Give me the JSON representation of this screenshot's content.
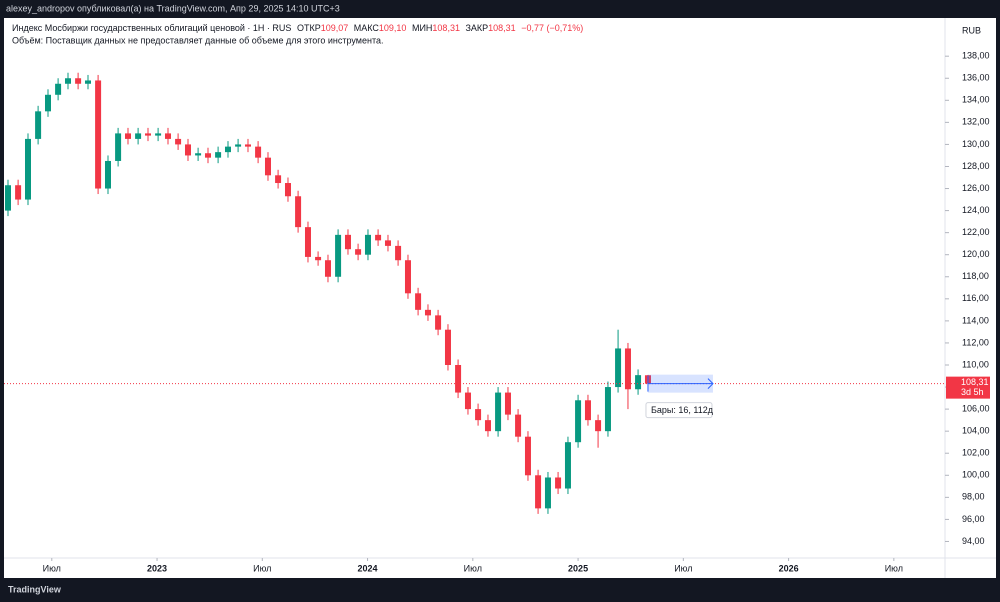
{
  "header": {
    "publisher": "alexey_andropov опубликовал(а) на TradingView.com, Апр 29, 2025 14:10 UTC+3",
    "brand": "TradingView"
  },
  "chart_data": {
    "type": "candlestick",
    "title": "Индекс Мосбиржи государственных облигаций ценовой · 1Н · RUS",
    "legend": {
      "open_label": "ОТКР",
      "open": "109,07",
      "high_label": "МАКС",
      "high": "109,10",
      "low_label": "МИН",
      "low": "108,31",
      "close_label": "ЗАКР",
      "close": "108,31",
      "change": "−0,77 (−0,71%)"
    },
    "subtitle": "Объём: Поставщик данных не предоставляет данные об объеме для этого инструмента.",
    "currency": "RUB",
    "last_price_label": "108,31",
    "countdown": "3d 5h",
    "measure_label": "Бары: 16, 112д",
    "up_color": "#089981",
    "down_color": "#f23645",
    "x": [
      2022.292,
      2022.34,
      2022.387,
      2022.435,
      2022.482,
      2022.53,
      2022.577,
      2022.625,
      2022.672,
      2022.72,
      2022.767,
      2022.815,
      2022.862,
      2022.91,
      2022.957,
      2023.005,
      2023.052,
      2023.1,
      2023.147,
      2023.195,
      2023.242,
      2023.29,
      2023.337,
      2023.385,
      2023.432,
      2023.48,
      2023.527,
      2023.575,
      2023.622,
      2023.67,
      2023.717,
      2023.765,
      2023.812,
      2023.86,
      2023.907,
      2023.955,
      2024.002,
      2024.05,
      2024.097,
      2024.145,
      2024.192,
      2024.24,
      2024.287,
      2024.335,
      2024.382,
      2024.43,
      2024.477,
      2024.525,
      2024.572,
      2024.62,
      2024.667,
      2024.715,
      2024.762,
      2024.81,
      2024.857,
      2024.905,
      2024.952,
      2025.0,
      2025.047,
      2025.095,
      2025.142,
      2025.19,
      2025.237,
      2025.285,
      2025.332
    ],
    "open": [
      124,
      126.3,
      125,
      130.5,
      133,
      134.5,
      135.5,
      136,
      135.5,
      135.8,
      126,
      128.5,
      131,
      130.5,
      131,
      130.8,
      131,
      130.5,
      130,
      129,
      129.2,
      128.8,
      129.3,
      129.8,
      130,
      129.8,
      128.8,
      127.2,
      126.5,
      125.3,
      122.5,
      119.8,
      119.5,
      118,
      121.8,
      120.5,
      120,
      121.8,
      121.3,
      120.8,
      119.5,
      116.5,
      115,
      114.5,
      113.2,
      110,
      107.5,
      106,
      105,
      104,
      107.5,
      105.5,
      103.5,
      100,
      97,
      99.8,
      98.8,
      103,
      106.8,
      105,
      104,
      108,
      111.5,
      107.8,
      109.07
    ],
    "high": [
      126.8,
      126.8,
      131,
      133.5,
      135,
      136,
      136.5,
      136.5,
      136.3,
      136.3,
      129,
      131.5,
      131.5,
      131.5,
      131.5,
      131.5,
      131.5,
      131,
      130.5,
      129.7,
      129.7,
      129.8,
      130.3,
      130.5,
      130.5,
      130.3,
      129.3,
      127.7,
      127,
      125.8,
      123,
      120.3,
      120,
      122.3,
      122.3,
      121,
      122.3,
      122.3,
      121.8,
      121.3,
      120,
      117,
      115.5,
      115,
      113.7,
      110.5,
      108,
      106.5,
      105.5,
      108,
      108,
      106,
      104,
      100.5,
      100.3,
      100.3,
      103.5,
      107.3,
      107.3,
      105.5,
      108.5,
      113.2,
      112,
      109.6,
      109.1
    ],
    "low": [
      123.5,
      124.5,
      124.5,
      130,
      132.5,
      134,
      135,
      135,
      135,
      125.5,
      125.5,
      128,
      130,
      130,
      130.3,
      130.3,
      130,
      129.5,
      128.5,
      128.5,
      128.3,
      128.3,
      128.8,
      129.3,
      129.3,
      128.3,
      126.7,
      126,
      124.8,
      122,
      119.3,
      119,
      117.5,
      117.5,
      120,
      119.5,
      119.5,
      120.8,
      120.3,
      119,
      116,
      114.5,
      114,
      112.7,
      109.5,
      107,
      105.5,
      104.5,
      103.5,
      103.5,
      105,
      103,
      99.5,
      96.5,
      96.5,
      98.3,
      98.3,
      102.5,
      104.5,
      102.5,
      103.5,
      107.5,
      106,
      107.3,
      108.31
    ],
    "close": [
      126.3,
      125,
      130.5,
      133,
      134.5,
      135.5,
      136,
      135.5,
      135.8,
      126,
      128.5,
      131,
      130.5,
      131,
      130.8,
      131,
      130.5,
      130,
      129,
      129.2,
      128.8,
      129.3,
      129.8,
      130,
      129.8,
      128.8,
      127.2,
      126.5,
      125.3,
      122.5,
      119.8,
      119.5,
      118,
      121.8,
      120.5,
      120,
      121.8,
      121.3,
      120.8,
      119.5,
      116.5,
      115,
      114.5,
      113.2,
      110,
      107.5,
      106,
      105,
      104,
      107.5,
      105.5,
      103.5,
      100,
      97,
      99.8,
      98.8,
      103,
      106.8,
      105,
      104,
      108,
      111.5,
      107.8,
      109.08,
      108.31
    ],
    "xlim": [
      2022.254,
      2026.743
    ],
    "xticks": [
      {
        "value": 2022.5,
        "label": "Июл"
      },
      2023,
      {
        "value": 2023.5,
        "label": "Июл"
      },
      2024,
      {
        "value": 2024.5,
        "label": "Июл"
      },
      2025,
      {
        "value": 2025.5,
        "label": "Июл"
      },
      2026,
      {
        "value": 2026.5,
        "label": "Июл"
      }
    ],
    "ylim": [
      92.5,
      141.1
    ],
    "yticks": [
      {
        "value": 94,
        "label": "94,00"
      },
      {
        "value": 96,
        "label": "96,00"
      },
      {
        "value": 98,
        "label": "98,00"
      },
      {
        "value": 100,
        "label": "100,00"
      },
      {
        "value": 102,
        "label": "102,00"
      },
      {
        "value": 104,
        "label": "104,00"
      },
      {
        "value": 106,
        "label": "106,00"
      },
      {
        "value": 108,
        "label": "108,00"
      },
      {
        "value": 110,
        "label": "110,00"
      },
      {
        "value": 112,
        "label": "112,00"
      },
      {
        "value": 114,
        "label": "114,00"
      },
      {
        "value": 116,
        "label": "116,00"
      },
      {
        "value": 118,
        "label": "118,00"
      },
      {
        "value": 120,
        "label": "120,00"
      },
      {
        "value": 122,
        "label": "122,00"
      },
      {
        "value": 124,
        "label": "124,00"
      },
      {
        "value": 126,
        "label": "126,00"
      },
      {
        "value": 128,
        "label": "128,00"
      },
      {
        "value": 130,
        "label": "130,00"
      },
      {
        "value": 132,
        "label": "132,00"
      },
      {
        "value": 134,
        "label": "134,00"
      },
      {
        "value": 136,
        "label": "136,00"
      },
      {
        "value": 138,
        "label": "138,00"
      }
    ]
  }
}
